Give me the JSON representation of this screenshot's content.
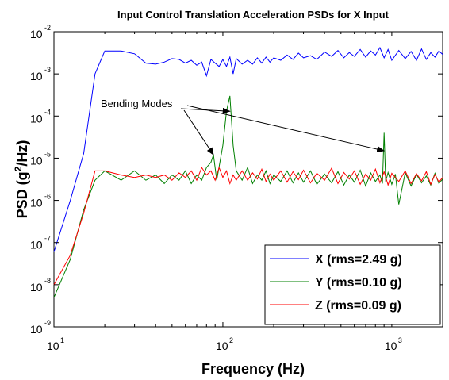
{
  "chart_data": {
    "type": "line",
    "title": "Input Control Translation Acceleration PSDs for X Input",
    "xlabel": "Frequency (Hz)",
    "ylabel": {
      "pre": "PSD (g",
      "sup": "2",
      "post": "/Hz)"
    },
    "xscale": "log",
    "yscale": "log",
    "xlim": [
      10,
      2000
    ],
    "ylim": [
      1e-09,
      0.01
    ],
    "x_ticks": [
      {
        "value": 10,
        "base": "10",
        "exp": "1"
      },
      {
        "value": 100,
        "base": "10",
        "exp": "2"
      },
      {
        "value": 1000,
        "base": "10",
        "exp": "3"
      }
    ],
    "y_ticks": [
      {
        "value": 0.01,
        "base": "10",
        "exp": "-2"
      },
      {
        "value": 0.001,
        "base": "10",
        "exp": "-3"
      },
      {
        "value": 0.0001,
        "base": "10",
        "exp": "-4"
      },
      {
        "value": 1e-05,
        "base": "10",
        "exp": "-5"
      },
      {
        "value": 1e-06,
        "base": "10",
        "exp": "-6"
      },
      {
        "value": 1e-07,
        "base": "10",
        "exp": "-7"
      },
      {
        "value": 1e-08,
        "base": "10",
        "exp": "-8"
      },
      {
        "value": 1e-09,
        "base": "10",
        "exp": "-9"
      }
    ],
    "grid": false,
    "legend_position": "bottom-right",
    "annotation": {
      "text": "Bending Modes",
      "targets": [
        {
          "x": 88,
          "y": 1.2e-05
        },
        {
          "x": 110,
          "y": 0.00013
        },
        {
          "x": 900,
          "y": 1.5e-05
        }
      ]
    },
    "series": [
      {
        "name": "X",
        "label": "X  (rms=2.49 g)",
        "color": "#0000ff",
        "x": [
          10,
          12.5,
          15,
          17.5,
          20,
          25,
          30,
          35,
          40,
          45,
          50,
          55,
          60,
          65,
          70,
          75,
          80,
          85,
          90,
          95,
          100,
          105,
          110,
          115,
          120,
          130,
          140,
          150,
          160,
          170,
          180,
          190,
          200,
          220,
          240,
          260,
          280,
          300,
          330,
          360,
          400,
          440,
          480,
          520,
          560,
          600,
          650,
          700,
          750,
          800,
          850,
          900,
          950,
          1000,
          1100,
          1200,
          1300,
          1400,
          1500,
          1600,
          1700,
          1800,
          1900,
          2000
        ],
        "y": [
          6e-08,
          1e-06,
          1.3e-05,
          0.001,
          0.0035,
          0.0035,
          0.003,
          0.0018,
          0.0017,
          0.0019,
          0.0023,
          0.0022,
          0.0018,
          0.0021,
          0.0016,
          0.0019,
          0.0009,
          0.0022,
          0.0018,
          0.0015,
          0.0022,
          0.0015,
          0.0025,
          0.001,
          0.0023,
          0.0017,
          0.0021,
          0.0017,
          0.0024,
          0.0018,
          0.0025,
          0.0019,
          0.0024,
          0.0021,
          0.0028,
          0.0022,
          0.0031,
          0.0024,
          0.0027,
          0.0022,
          0.0033,
          0.0026,
          0.0036,
          0.0024,
          0.0032,
          0.0026,
          0.0038,
          0.0025,
          0.0035,
          0.0028,
          0.0042,
          0.0024,
          0.0038,
          0.0021,
          0.0036,
          0.0023,
          0.0034,
          0.0021,
          0.0039,
          0.0022,
          0.0032,
          0.0025,
          0.0035,
          0.0029
        ]
      },
      {
        "name": "Y",
        "label": "Y  (rms=0.10 g)",
        "color": "#008000",
        "x": [
          10,
          12.5,
          15,
          17.5,
          20,
          25,
          30,
          35,
          40,
          45,
          50,
          55,
          60,
          65,
          70,
          75,
          80,
          85,
          88,
          92,
          96,
          100,
          105,
          110,
          115,
          120,
          130,
          140,
          150,
          160,
          170,
          180,
          190,
          200,
          220,
          240,
          260,
          280,
          300,
          330,
          360,
          400,
          440,
          480,
          520,
          560,
          600,
          650,
          700,
          750,
          800,
          850,
          880,
          900,
          920,
          950,
          1000,
          1050,
          1100,
          1200,
          1300,
          1400,
          1500,
          1600,
          1700,
          1800,
          1900,
          2000
        ],
        "y": [
          5e-09,
          4e-08,
          6e-07,
          3e-06,
          5e-06,
          3e-06,
          5e-06,
          3e-06,
          4e-06,
          2.5e-06,
          4e-06,
          3e-06,
          5e-06,
          2.5e-06,
          4e-06,
          3e-06,
          6e-06,
          8e-06,
          1.2e-05,
          3e-06,
          8e-06,
          2e-05,
          0.00013,
          0.0003,
          2e-05,
          5e-06,
          3e-06,
          6e-06,
          2.5e-06,
          4e-06,
          3e-06,
          5e-06,
          2.5e-06,
          4e-06,
          2.8e-06,
          5e-06,
          2.6e-06,
          4.5e-06,
          2.7e-06,
          5e-06,
          2.4e-06,
          4.2e-06,
          2.6e-06,
          4.8e-06,
          2.3e-06,
          4e-06,
          2.7e-06,
          5.2e-06,
          2.2e-06,
          4.5e-06,
          2.8e-06,
          4e-06,
          2.5e-06,
          4e-05,
          2.8e-06,
          4.6e-06,
          2.4e-06,
          4.2e-06,
          8e-07,
          4.5e-06,
          2.2e-06,
          4.1e-06,
          2.6e-06,
          3.8e-06,
          2.3e-06,
          4.4e-06,
          2.5e-06,
          3.2e-06
        ]
      },
      {
        "name": "Z",
        "label": "Z  (rms=0.09 g)",
        "color": "#ff0000",
        "x": [
          10,
          12.5,
          15,
          17.5,
          20,
          25,
          30,
          35,
          40,
          45,
          50,
          55,
          60,
          65,
          70,
          75,
          80,
          85,
          90,
          95,
          100,
          105,
          110,
          115,
          120,
          130,
          140,
          150,
          160,
          170,
          180,
          190,
          200,
          220,
          240,
          260,
          280,
          300,
          330,
          360,
          400,
          440,
          480,
          520,
          560,
          600,
          650,
          700,
          750,
          800,
          850,
          900,
          950,
          1000,
          1100,
          1200,
          1300,
          1400,
          1500,
          1600,
          1700,
          1800,
          1900,
          2000
        ],
        "y": [
          1e-08,
          5e-08,
          5e-07,
          5e-06,
          5e-06,
          4e-06,
          3.5e-06,
          4e-06,
          3.5e-06,
          4e-06,
          3e-06,
          4.5e-06,
          3.5e-06,
          5e-06,
          3e-06,
          6e-06,
          4e-06,
          5e-06,
          3e-06,
          6e-06,
          3.5e-06,
          5e-06,
          2.5e-06,
          4e-06,
          3e-06,
          5e-06,
          3e-06,
          4.5e-06,
          3.2e-06,
          5.5e-06,
          2.8e-06,
          4.2e-06,
          3e-06,
          5e-06,
          2.7e-06,
          4.8e-06,
          3.1e-06,
          5.2e-06,
          2.6e-06,
          4.4e-06,
          3e-06,
          5.8e-06,
          2.5e-06,
          4.6e-06,
          3.2e-06,
          5e-06,
          2.4e-06,
          4.2e-06,
          3e-06,
          5.5e-06,
          2.6e-06,
          4.8e-06,
          2.3e-06,
          4.4e-06,
          2.8e-06,
          5e-06,
          2.5e-06,
          4.3e-06,
          2.9e-06,
          4.8e-06,
          2.4e-06,
          4.1e-06,
          2.7e-06,
          3.5e-06
        ]
      }
    ]
  }
}
